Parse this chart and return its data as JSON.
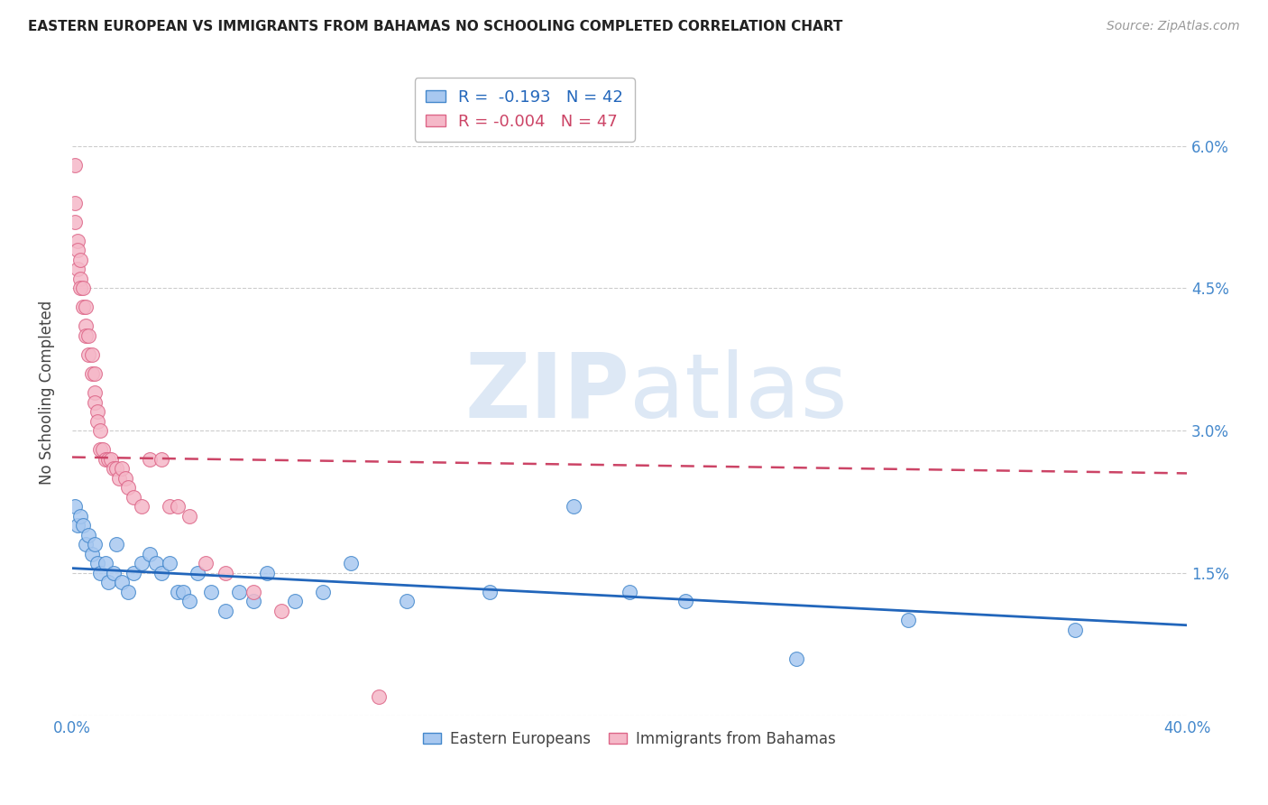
{
  "title": "EASTERN EUROPEAN VS IMMIGRANTS FROM BAHAMAS NO SCHOOLING COMPLETED CORRELATION CHART",
  "source": "Source: ZipAtlas.com",
  "ylabel": "No Schooling Completed",
  "xlim": [
    0.0,
    0.4
  ],
  "ylim": [
    0.0,
    0.068
  ],
  "yticks": [
    0.0,
    0.015,
    0.03,
    0.045,
    0.06
  ],
  "ytick_labels_left": [
    "",
    "",
    "",
    "",
    ""
  ],
  "ytick_labels_right": [
    "",
    "1.5%",
    "3.0%",
    "4.5%",
    "6.0%"
  ],
  "xticks": [
    0.0,
    0.1,
    0.2,
    0.3,
    0.4
  ],
  "xtick_labels": [
    "0.0%",
    "",
    "",
    "",
    "40.0%"
  ],
  "legend_R_blue": "-0.193",
  "legend_N_blue": "42",
  "legend_R_pink": "-0.004",
  "legend_N_pink": "47",
  "blue_fill_color": "#a8c8f0",
  "pink_fill_color": "#f5b8c8",
  "blue_edge_color": "#4488cc",
  "pink_edge_color": "#dd6688",
  "blue_line_color": "#2266bb",
  "pink_line_color": "#cc4466",
  "grid_color": "#cccccc",
  "title_color": "#222222",
  "axis_label_color": "#444444",
  "right_tick_color": "#4488cc",
  "watermark_color": "#dde8f5",
  "blue_scatter_x": [
    0.001,
    0.002,
    0.003,
    0.004,
    0.005,
    0.006,
    0.007,
    0.008,
    0.009,
    0.01,
    0.012,
    0.013,
    0.015,
    0.016,
    0.018,
    0.02,
    0.022,
    0.025,
    0.028,
    0.03,
    0.032,
    0.035,
    0.038,
    0.04,
    0.042,
    0.045,
    0.05,
    0.055,
    0.06,
    0.065,
    0.07,
    0.08,
    0.09,
    0.1,
    0.12,
    0.15,
    0.18,
    0.2,
    0.22,
    0.26,
    0.3,
    0.36
  ],
  "blue_scatter_y": [
    0.022,
    0.02,
    0.021,
    0.02,
    0.018,
    0.019,
    0.017,
    0.018,
    0.016,
    0.015,
    0.016,
    0.014,
    0.015,
    0.018,
    0.014,
    0.013,
    0.015,
    0.016,
    0.017,
    0.016,
    0.015,
    0.016,
    0.013,
    0.013,
    0.012,
    0.015,
    0.013,
    0.011,
    0.013,
    0.012,
    0.015,
    0.012,
    0.013,
    0.016,
    0.012,
    0.013,
    0.022,
    0.013,
    0.012,
    0.006,
    0.01,
    0.009
  ],
  "pink_scatter_x": [
    0.001,
    0.001,
    0.001,
    0.002,
    0.002,
    0.002,
    0.003,
    0.003,
    0.003,
    0.004,
    0.004,
    0.005,
    0.005,
    0.005,
    0.006,
    0.006,
    0.007,
    0.007,
    0.008,
    0.008,
    0.008,
    0.009,
    0.009,
    0.01,
    0.01,
    0.011,
    0.012,
    0.013,
    0.014,
    0.015,
    0.016,
    0.017,
    0.018,
    0.019,
    0.02,
    0.022,
    0.025,
    0.028,
    0.032,
    0.035,
    0.038,
    0.042,
    0.048,
    0.055,
    0.065,
    0.075,
    0.11
  ],
  "pink_scatter_y": [
    0.058,
    0.054,
    0.052,
    0.05,
    0.049,
    0.047,
    0.048,
    0.046,
    0.045,
    0.045,
    0.043,
    0.043,
    0.041,
    0.04,
    0.04,
    0.038,
    0.038,
    0.036,
    0.036,
    0.034,
    0.033,
    0.032,
    0.031,
    0.03,
    0.028,
    0.028,
    0.027,
    0.027,
    0.027,
    0.026,
    0.026,
    0.025,
    0.026,
    0.025,
    0.024,
    0.023,
    0.022,
    0.027,
    0.027,
    0.022,
    0.022,
    0.021,
    0.016,
    0.015,
    0.013,
    0.011,
    0.002
  ],
  "blue_trend_x": [
    0.0,
    0.4
  ],
  "blue_trend_y": [
    0.0155,
    0.0095
  ],
  "pink_trend_x": [
    0.0,
    0.4
  ],
  "pink_trend_y": [
    0.0272,
    0.0255
  ]
}
